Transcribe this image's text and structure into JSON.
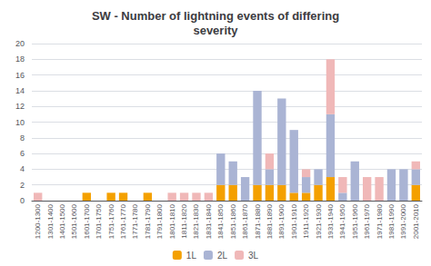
{
  "chart_data": {
    "type": "bar",
    "title": "SW - Number of lightning events of differing\nseverity",
    "categories": [
      "1200-1300",
      "1301-1400",
      "1401-1500",
      "1501-1600",
      "1601-1700",
      "1701-1750",
      "1751-1760",
      "1761-1770",
      "1771-1780",
      "1781-1790",
      "1791-1800",
      "1801-1810",
      "1811-1820",
      "1821-1830",
      "1831-1840",
      "1841-1850",
      "1851-1860",
      "1861-1870",
      "1871-1880",
      "1881-1890",
      "1891-1900",
      "1901-1910",
      "1911-1920",
      "1921-1930",
      "1931-1940",
      "1941-1950",
      "1951-1960",
      "1961-1970",
      "1971-1980",
      "1981-1990",
      "1991-2000",
      "2001-2010"
    ],
    "series": [
      {
        "name": "1L",
        "color": "#f4a000",
        "values": [
          0,
          0,
          0,
          0,
          1,
          0,
          1,
          1,
          0,
          1,
          0,
          0,
          0,
          0,
          0,
          2,
          2,
          0,
          2,
          2,
          2,
          1,
          1,
          2,
          3,
          0,
          0,
          0,
          0,
          0,
          0,
          2
        ]
      },
      {
        "name": "2L",
        "color": "#aab4d4",
        "values": [
          0,
          0,
          0,
          0,
          0,
          0,
          0,
          0,
          0,
          0,
          0,
          0,
          0,
          0,
          0,
          4,
          3,
          3,
          12,
          2,
          11,
          8,
          2,
          2,
          8,
          1,
          5,
          0,
          0,
          4,
          4,
          2
        ]
      },
      {
        "name": "3L",
        "color": "#f0b8b8",
        "values": [
          1,
          0,
          0,
          0,
          0,
          0,
          0,
          0,
          0,
          0,
          0,
          1,
          1,
          1,
          1,
          0,
          0,
          0,
          0,
          2,
          0,
          0,
          1,
          0,
          7,
          2,
          0,
          3,
          3,
          0,
          0,
          1
        ]
      }
    ],
    "stacked": true,
    "ylim": [
      0,
      20
    ],
    "yticks": [
      0,
      2,
      4,
      6,
      8,
      10,
      12,
      14,
      16,
      18,
      20
    ],
    "grid": true,
    "legend": "bottom"
  }
}
